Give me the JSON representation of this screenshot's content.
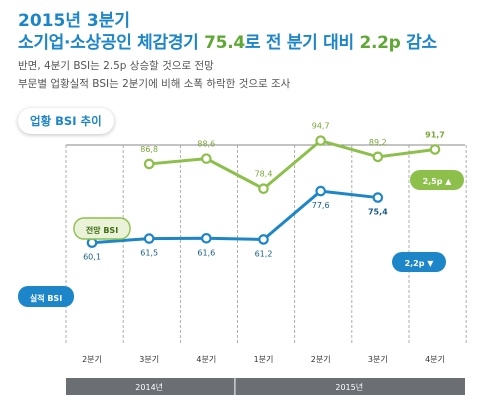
{
  "header": {
    "title_line1": "2015년 3분기",
    "title_line2_pre": "소기업·소상공인 체감경기",
    "title_line2_v1": "75.4",
    "title_line2_mid": "로 전 분기 대비",
    "title_line2_v2": "2.2p",
    "title_line2_post": "감소",
    "subtitle1": "반면, 4분기 BSI는 2.5p 상승할 것으로 전망",
    "subtitle2": "부문별 업황실적 BSI는 2분기에 비해 소폭 하락한 것으로 조사"
  },
  "chart_label": "업황 BSI 추이",
  "colors": {
    "blue": "#1d86c9",
    "green": "#8cc04b",
    "axis_bar": "#6b6f73"
  },
  "chart_data": {
    "type": "line",
    "categories": [
      "2분기",
      "3분기",
      "4분기",
      "1분기",
      "2분기",
      "3분기",
      "4분기"
    ],
    "year_groups": [
      {
        "label": "2014년",
        "span": [
          0,
          2
        ]
      },
      {
        "label": "2015년",
        "span": [
          3,
          6
        ]
      }
    ],
    "series": [
      {
        "name": "전망 BSI",
        "color": "#8cc04b",
        "values": [
          null,
          86.8,
          88.6,
          78.4,
          94.7,
          89.2,
          91.7
        ],
        "labels": [
          "",
          "86,8",
          "88,6",
          "78,4",
          "94,7",
          "89,2",
          "91,7"
        ]
      },
      {
        "name": "실적 BSI",
        "color": "#1d86c9",
        "values": [
          60.1,
          61.5,
          61.6,
          61.2,
          77.6,
          75.4,
          null
        ],
        "labels": [
          "60,1",
          "61,5",
          "61,6",
          "61,2",
          "77,6",
          "75,4",
          ""
        ]
      }
    ],
    "callouts": [
      {
        "series": "전망 BSI",
        "text": "2,5p ▲"
      },
      {
        "series": "실적 BSI",
        "text": "2,2p ▼"
      }
    ]
  }
}
